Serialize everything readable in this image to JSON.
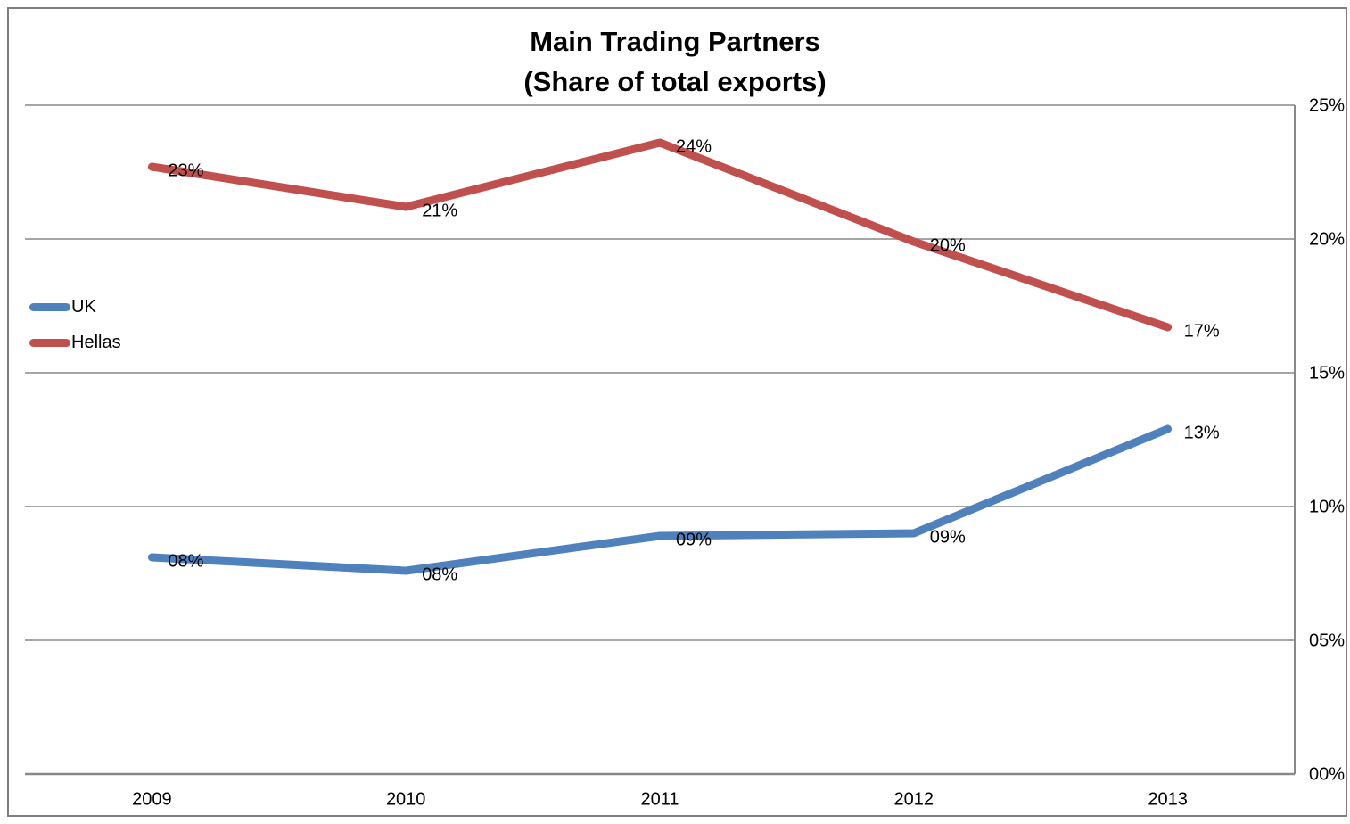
{
  "title": {
    "line1": "Main Trading Partners",
    "line2": "(Share of total exports)"
  },
  "legend": {
    "items": [
      {
        "label": "UK",
        "color": "#4F81BD"
      },
      {
        "label": "Hellas",
        "color": "#C0504D"
      }
    ]
  },
  "colors": {
    "uk_line": "#4F81BD",
    "hellas_line": "#C0504D",
    "gridline": "#A6A6A6",
    "axis_line": "#898989",
    "frame_border": "#7F7F7F",
    "text": "#000000"
  },
  "chart_data": {
    "type": "line",
    "title": "Main Trading Partners (Share of total exports)",
    "categories": [
      "2009",
      "2010",
      "2011",
      "2012",
      "2013"
    ],
    "series": [
      {
        "name": "UK",
        "color": "#4F81BD",
        "values": [
          8.1,
          7.6,
          8.9,
          9.0,
          12.9
        ],
        "data_labels": [
          "08%",
          "08%",
          "09%",
          "09%",
          "13%"
        ]
      },
      {
        "name": "Hellas",
        "color": "#C0504D",
        "values": [
          22.7,
          21.2,
          23.6,
          19.9,
          16.7
        ],
        "data_labels": [
          "23%",
          "21%",
          "24%",
          "20%",
          "17%"
        ]
      }
    ],
    "y_axis": {
      "side": "right",
      "min": 0,
      "max": 25,
      "tick_values": [
        0,
        5,
        10,
        15,
        20,
        25
      ],
      "tick_labels": [
        "00%",
        "05%",
        "10%",
        "15%",
        "20%",
        "25%"
      ]
    },
    "x_axis": {
      "tick_labels": [
        "2009",
        "2010",
        "2011",
        "2012",
        "2013"
      ]
    },
    "grid": true,
    "legend_position": "left-middle"
  }
}
